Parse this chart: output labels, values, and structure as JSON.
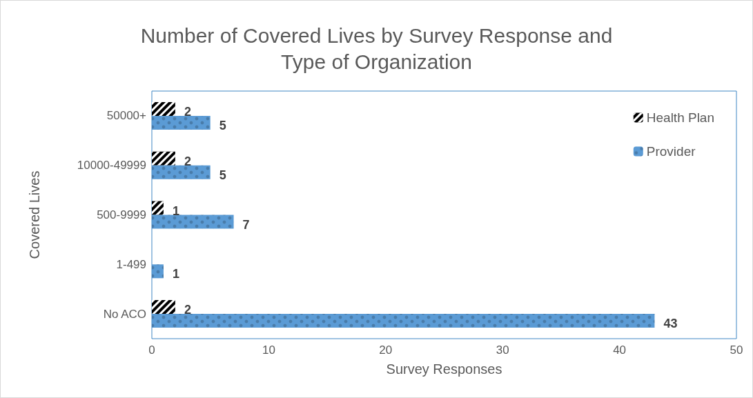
{
  "chart_data": {
    "type": "bar",
    "orientation": "horizontal",
    "title": "Number of Covered Lives by Survey Response and\nType of Organization",
    "xlabel": "Survey Responses",
    "ylabel": "Covered Lives",
    "categories": [
      "50000+",
      "10000-49999",
      "500-9999",
      "1-499",
      "No ACO"
    ],
    "series": [
      {
        "name": "Health Plan",
        "color": "#000000",
        "values": [
          2,
          2,
          1,
          null,
          2
        ]
      },
      {
        "name": "Provider",
        "color": "#5b9bd5",
        "values": [
          5,
          5,
          7,
          1,
          43
        ]
      }
    ],
    "xlim": [
      0,
      50
    ],
    "xticks": [
      0,
      10,
      20,
      30,
      40,
      50
    ],
    "grid": false,
    "legend": "top right",
    "data_labels": true
  }
}
